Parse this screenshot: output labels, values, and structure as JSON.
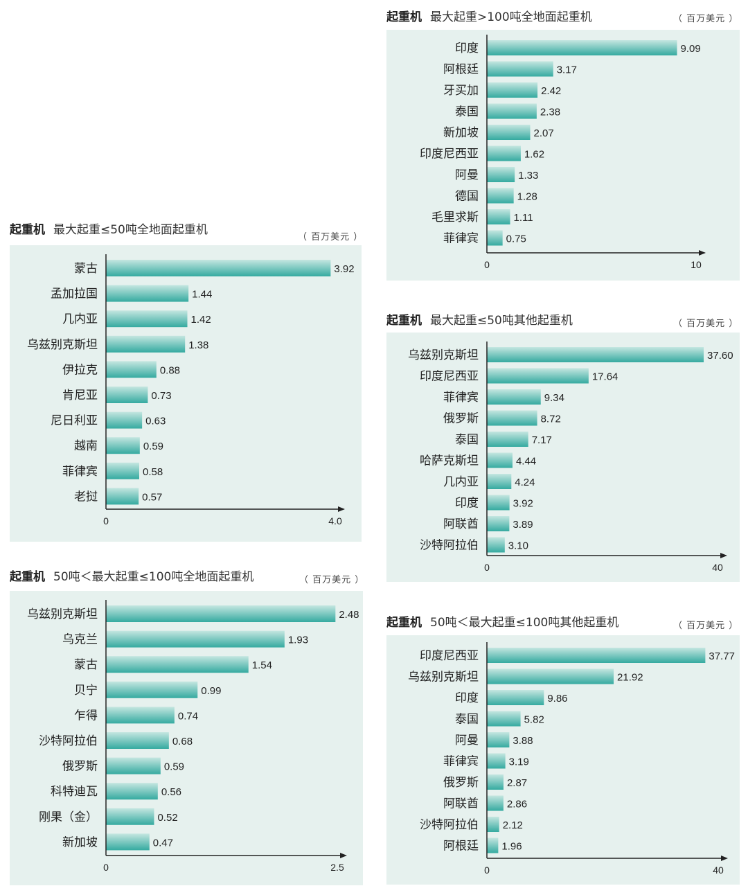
{
  "colors": {
    "panel_bg": "#e6f1ee",
    "bar_light": "#c4e6e0",
    "bar_dark": "#35aaa0",
    "axis": "#222222",
    "text": "#222222"
  },
  "chart_data": [
    {
      "type": "bar",
      "orientation": "horizontal",
      "category_label": "起重机",
      "title": "最大起重>100吨全地面起重机",
      "unit": "（ 百万美元 ）",
      "categories": [
        "印度",
        "阿根廷",
        "牙买加",
        "泰国",
        "新加坡",
        "印度尼西亚",
        "阿曼",
        "德国",
        "毛里求斯",
        "菲律宾"
      ],
      "values": [
        9.09,
        3.17,
        2.42,
        2.38,
        2.07,
        1.62,
        1.33,
        1.28,
        1.11,
        0.75
      ],
      "value_labels": [
        "9.09",
        "3.17",
        "2.42",
        "2.38",
        "2.07",
        "1.62",
        "1.33",
        "1.28",
        "1.11",
        "0.75"
      ],
      "xlim": [
        0,
        10
      ],
      "x_ticks": [
        "0",
        "10"
      ]
    },
    {
      "type": "bar",
      "orientation": "horizontal",
      "category_label": "起重机",
      "title": "最大起重≤50吨全地面起重机",
      "unit": "（ 百万美元 ）",
      "categories": [
        "蒙古",
        "孟加拉国",
        "几内亚",
        "乌兹别克斯坦",
        "伊拉克",
        "肯尼亚",
        "尼日利亚",
        "越南",
        "菲律宾",
        "老挝"
      ],
      "values": [
        3.92,
        1.44,
        1.42,
        1.38,
        0.88,
        0.73,
        0.63,
        0.59,
        0.58,
        0.57
      ],
      "value_labels": [
        "3.92",
        "1.44",
        "1.42",
        "1.38",
        "0.88",
        "0.73",
        "0.63",
        "0.59",
        "0.58",
        "0.57"
      ],
      "xlim": [
        0,
        4.0
      ],
      "x_ticks": [
        "0",
        "4.0"
      ]
    },
    {
      "type": "bar",
      "orientation": "horizontal",
      "category_label": "起重机",
      "title": "最大起重≤50吨其他起重机",
      "unit": "（ 百万美元 ）",
      "categories": [
        "乌兹别克斯坦",
        "印度尼西亚",
        "菲律宾",
        "俄罗斯",
        "泰国",
        "哈萨克斯坦",
        "几内亚",
        "印度",
        "阿联酋",
        "沙特阿拉伯"
      ],
      "values": [
        37.6,
        17.64,
        9.34,
        8.72,
        7.17,
        4.44,
        4.24,
        3.92,
        3.89,
        3.1
      ],
      "value_labels": [
        "37.60",
        "17.64",
        "9.34",
        "8.72",
        "7.17",
        "4.44",
        "4.24",
        "3.92",
        "3.89",
        "3.10"
      ],
      "xlim": [
        0,
        40
      ],
      "x_ticks": [
        "0",
        "40"
      ]
    },
    {
      "type": "bar",
      "orientation": "horizontal",
      "category_label": "起重机",
      "title": "50吨＜最大起重≤100吨全地面起重机",
      "unit": "（ 百万美元 ）",
      "categories": [
        "乌兹别克斯坦",
        "乌克兰",
        "蒙古",
        "贝宁",
        "乍得",
        "沙特阿拉伯",
        "俄罗斯",
        "科特迪瓦",
        "刚果（金）",
        "新加坡"
      ],
      "values": [
        2.48,
        1.93,
        1.54,
        0.99,
        0.74,
        0.68,
        0.59,
        0.56,
        0.52,
        0.47
      ],
      "value_labels": [
        "2.48",
        "1.93",
        "1.54",
        "0.99",
        "0.74",
        "0.68",
        "0.59",
        "0.56",
        "0.52",
        "0.47"
      ],
      "xlim": [
        0,
        2.5
      ],
      "x_ticks": [
        "0",
        "2.5"
      ]
    },
    {
      "type": "bar",
      "orientation": "horizontal",
      "category_label": "起重机",
      "title": "50吨＜最大起重≤100吨其他起重机",
      "unit": "（ 百万美元 ）",
      "categories": [
        "印度尼西亚",
        "乌兹别克斯坦",
        "印度",
        "泰国",
        "阿曼",
        "菲律宾",
        "俄罗斯",
        "阿联酋",
        "沙特阿拉伯",
        "阿根廷"
      ],
      "values": [
        37.77,
        21.92,
        9.86,
        5.82,
        3.88,
        3.19,
        2.87,
        2.86,
        2.12,
        1.96
      ],
      "value_labels": [
        "37.77",
        "21.92",
        "9.86",
        "5.82",
        "3.88",
        "3.19",
        "2.87",
        "2.86",
        "2.12",
        "1.96"
      ],
      "xlim": [
        0,
        40
      ],
      "x_ticks": [
        "0",
        "40"
      ]
    }
  ]
}
